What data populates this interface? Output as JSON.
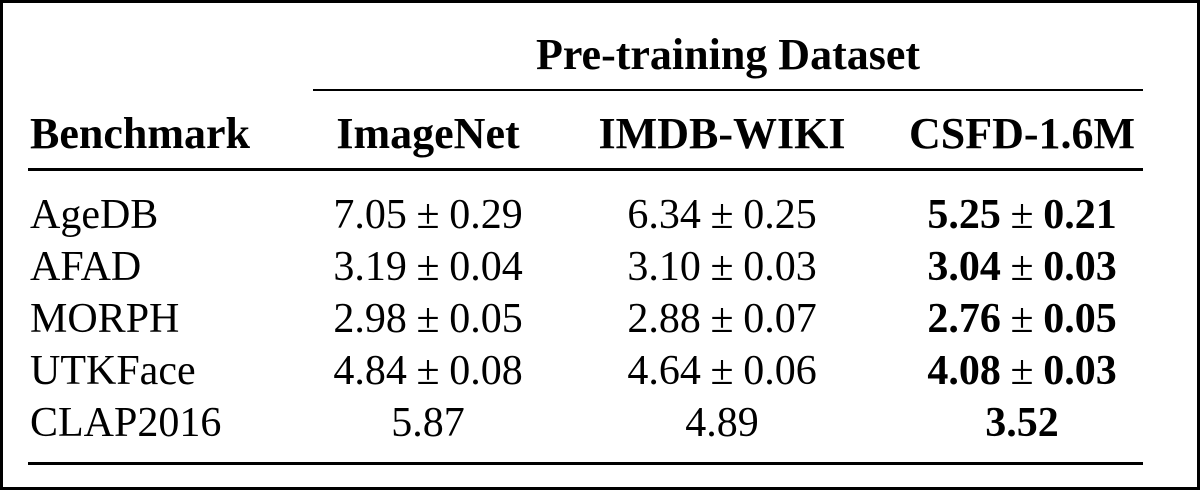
{
  "page": {
    "background_color": "#ffffff",
    "frame_color": "#000000",
    "text_color": "#000000"
  },
  "table": {
    "title_header": {
      "label": "Pre-training Dataset"
    },
    "columns": [
      {
        "label": "Benchmark"
      },
      {
        "label": "ImageNet"
      },
      {
        "label": "IMDB-WIKI"
      },
      {
        "label": "CSFD-1.6M"
      }
    ],
    "rows": [
      {
        "benchmark": "AgeDB",
        "values": [
          {
            "mean": "7.05",
            "pm": "±",
            "std": "0.29"
          },
          {
            "mean": "6.34",
            "pm": "±",
            "std": "0.25"
          },
          {
            "mean": "5.25",
            "pm": "±",
            "std": "0.21",
            "bold": true
          }
        ]
      },
      {
        "benchmark": "AFAD",
        "values": [
          {
            "mean": "3.19",
            "pm": "±",
            "std": "0.04"
          },
          {
            "mean": "3.10",
            "pm": "±",
            "std": "0.03"
          },
          {
            "mean": "3.04",
            "pm": "±",
            "std": "0.03",
            "bold": true
          }
        ]
      },
      {
        "benchmark": "MORPH",
        "values": [
          {
            "mean": "2.98",
            "pm": "±",
            "std": "0.05"
          },
          {
            "mean": "2.88",
            "pm": "±",
            "std": "0.07"
          },
          {
            "mean": "2.76",
            "pm": "±",
            "std": "0.05",
            "bold": true
          }
        ]
      },
      {
        "benchmark": "UTKFace",
        "values": [
          {
            "mean": "4.84",
            "pm": "±",
            "std": "0.08"
          },
          {
            "mean": "4.64",
            "pm": "±",
            "std": "0.06"
          },
          {
            "mean": "4.08",
            "pm": "±",
            "std": "0.03",
            "bold": true
          }
        ]
      },
      {
        "benchmark": "CLAP2016",
        "values": [
          {
            "mean": "5.87"
          },
          {
            "mean": "4.89"
          },
          {
            "mean": "3.52",
            "bold": true
          }
        ]
      }
    ]
  }
}
